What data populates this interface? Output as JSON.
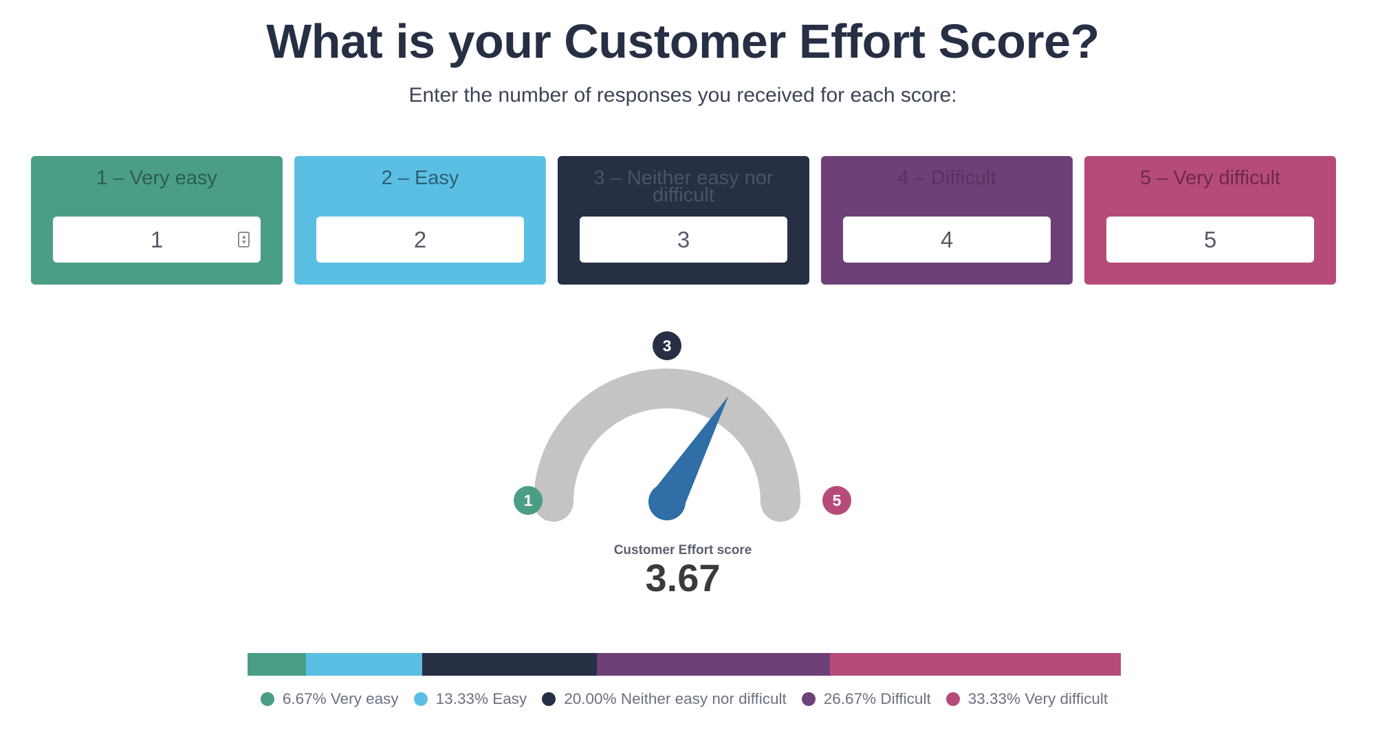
{
  "title": "What is your Customer Effort Score?",
  "subtitle": "Enter the number of responses you received for each score:",
  "cards": [
    {
      "label": "1 – Very easy",
      "value": "1",
      "color": "#4a9e86",
      "label_color": "#2e5c50"
    },
    {
      "label": "2 – Easy",
      "value": "2",
      "color": "#5bbfe3",
      "label_color": "#2d5f73"
    },
    {
      "label": "3 – Neither easy nor difficult",
      "value": "3",
      "color": "#262f44",
      "label_color": "#4a5368"
    },
    {
      "label": "4 – Difficult",
      "value": "4",
      "color": "#6e4078",
      "label_color": "#5a3163"
    },
    {
      "label": "5 – Very difficult",
      "value": "5",
      "color": "#b64b7a",
      "label_color": "#6e2a48"
    }
  ],
  "gauge": {
    "min_label": "1",
    "mid_label": "3",
    "max_label": "5",
    "min": 1,
    "max": 5,
    "value": 3.67,
    "track_color": "#c4c4c4",
    "needle_color": "#2f6ea6"
  },
  "score": {
    "caption": "Customer Effort score",
    "value": "3.67"
  },
  "distribution": [
    {
      "percent": 6.67,
      "text": "6.67% Very easy",
      "color": "#4a9e86"
    },
    {
      "percent": 13.33,
      "text": "13.33% Easy",
      "color": "#5bbfe3"
    },
    {
      "percent": 20.0,
      "text": "20.00% Neither easy nor difficult",
      "color": "#262f44"
    },
    {
      "percent": 26.67,
      "text": "26.67% Difficult",
      "color": "#6e4078"
    },
    {
      "percent": 33.33,
      "text": "33.33% Very difficult",
      "color": "#b64b7a"
    }
  ]
}
